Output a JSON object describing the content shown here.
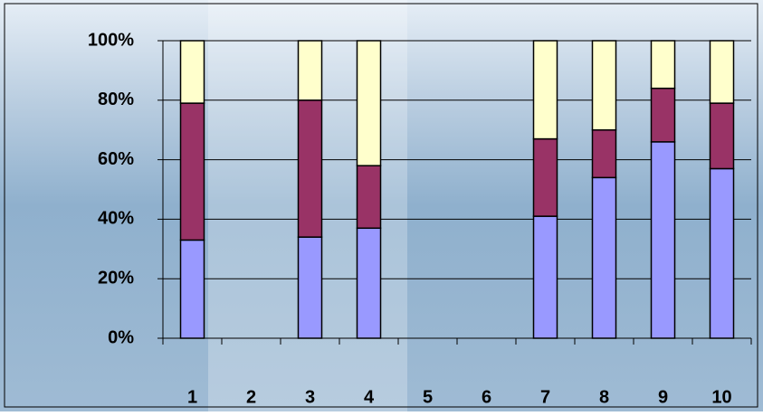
{
  "chart_data": {
    "type": "stacked_bar_percent",
    "categories": [
      "1",
      "2",
      "3",
      "4",
      "5",
      "6",
      "7",
      "8",
      "9",
      "10"
    ],
    "series": [
      {
        "color": "#9999ff",
        "values": [
          33,
          null,
          34,
          37,
          null,
          null,
          41,
          54,
          66,
          57
        ]
      },
      {
        "color": "#993366",
        "values": [
          46,
          null,
          46,
          21,
          null,
          null,
          26,
          16,
          18,
          22
        ]
      },
      {
        "color": "#ffffcc",
        "values": [
          21,
          null,
          20,
          42,
          null,
          null,
          33,
          30,
          16,
          21
        ]
      }
    ],
    "ylim": [
      0,
      100
    ],
    "yticks": [
      {
        "value": 0,
        "label": "0%"
      },
      {
        "value": 20,
        "label": "20%"
      },
      {
        "value": 40,
        "label": "40%"
      },
      {
        "value": 60,
        "label": "60%"
      },
      {
        "value": 80,
        "label": "80%"
      },
      {
        "value": 100,
        "label": "100%"
      }
    ],
    "grid": true
  }
}
